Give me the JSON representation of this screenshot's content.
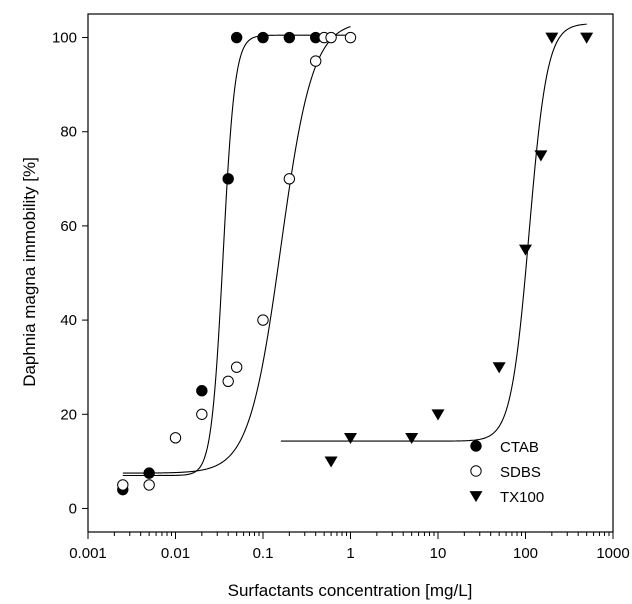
{
  "chart_data": {
    "type": "scatter",
    "title": "",
    "xlabel": "Surfactants concentration [mg/L]",
    "ylabel": "Daphnia magna immobility [%]",
    "x_scale": "log",
    "xlim": [
      0.001,
      1000
    ],
    "ylim": [
      -5,
      105
    ],
    "x_ticks": [
      0.001,
      0.01,
      0.1,
      1,
      10,
      100,
      1000
    ],
    "x_tick_labels": [
      "0.001",
      "0.01",
      "0.1",
      "1",
      "10",
      "100",
      "1000"
    ],
    "y_ticks": [
      0,
      20,
      40,
      60,
      80,
      100
    ],
    "y_tick_labels": [
      "0",
      "20",
      "40",
      "60",
      "80",
      "100"
    ],
    "grid": false,
    "legend_position": "bottom-right",
    "series": [
      {
        "name": "CTAB",
        "marker": "filled-circle",
        "color": "#000000",
        "points": [
          {
            "x": 0.0025,
            "y": 4
          },
          {
            "x": 0.005,
            "y": 7.5
          },
          {
            "x": 0.02,
            "y": 25
          },
          {
            "x": 0.04,
            "y": 70
          },
          {
            "x": 0.05,
            "y": 100
          },
          {
            "x": 0.1,
            "y": 100
          },
          {
            "x": 0.2,
            "y": 100
          },
          {
            "x": 0.4,
            "y": 100
          }
        ],
        "fit": {
          "bottom": 7,
          "top": 100.5,
          "ec50": 0.035,
          "slope": 6.5,
          "x_from": 0.0025,
          "x_to": 1
        }
      },
      {
        "name": "SDBS",
        "marker": "open-circle",
        "color": "#000000",
        "points": [
          {
            "x": 0.0025,
            "y": 5
          },
          {
            "x": 0.005,
            "y": 5
          },
          {
            "x": 0.01,
            "y": 15
          },
          {
            "x": 0.02,
            "y": 20
          },
          {
            "x": 0.04,
            "y": 27
          },
          {
            "x": 0.05,
            "y": 30
          },
          {
            "x": 0.1,
            "y": 40
          },
          {
            "x": 0.2,
            "y": 70
          },
          {
            "x": 0.4,
            "y": 95
          },
          {
            "x": 0.5,
            "y": 100
          },
          {
            "x": 0.6,
            "y": 100
          },
          {
            "x": 1,
            "y": 100
          }
        ],
        "fit": {
          "bottom": 7.5,
          "top": 103.5,
          "ec50": 0.16,
          "slope": 2.4,
          "x_from": 0.0025,
          "x_to": 1
        }
      },
      {
        "name": "TX100",
        "marker": "filled-triangle-down",
        "color": "#000000",
        "points": [
          {
            "x": 0.6,
            "y": 10
          },
          {
            "x": 1,
            "y": 15
          },
          {
            "x": 5,
            "y": 15
          },
          {
            "x": 10,
            "y": 20
          },
          {
            "x": 50,
            "y": 30
          },
          {
            "x": 100,
            "y": 55
          },
          {
            "x": 150,
            "y": 75
          },
          {
            "x": 200,
            "y": 100
          },
          {
            "x": 500,
            "y": 100
          }
        ],
        "fit": {
          "bottom": 14.3,
          "top": 103,
          "ec50": 110,
          "slope": 4.2,
          "x_from": 0.16,
          "x_to": 500
        }
      }
    ]
  }
}
